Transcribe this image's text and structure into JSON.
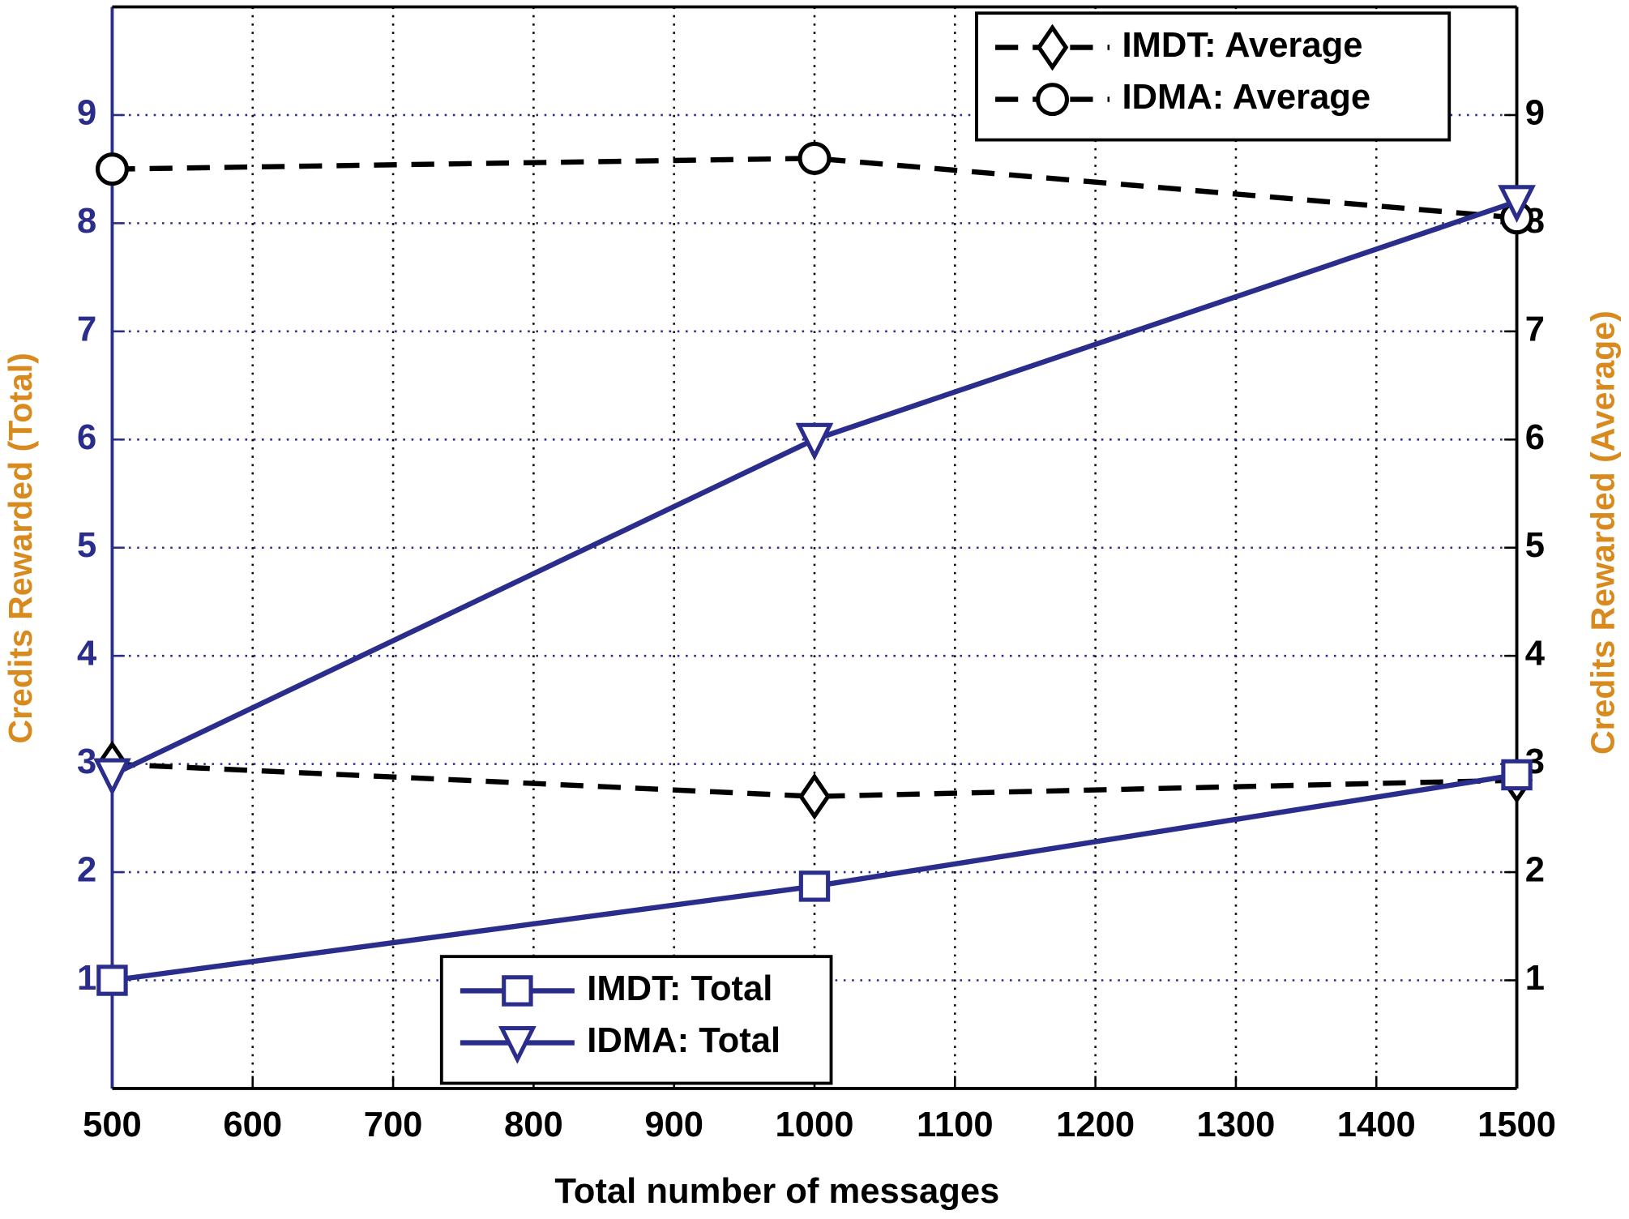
{
  "chart_data": {
    "type": "line",
    "x_label": "Total number of messages",
    "y_label": "Credits Rewarded (Total)",
    "y2_label": "Credits Rewarded (Average)",
    "x": [
      500,
      1000,
      1500
    ],
    "xlim": [
      500,
      1500
    ],
    "xticks": [
      500,
      600,
      700,
      800,
      900,
      1000,
      1100,
      1200,
      1300,
      1400,
      1500
    ],
    "ylim": [
      0,
      10
    ],
    "yticks": [
      1,
      2,
      3,
      4,
      5,
      6,
      7,
      8,
      9
    ],
    "y2lim": [
      0,
      10
    ],
    "y2ticks": [
      1,
      2,
      3,
      4,
      5,
      6,
      7,
      8,
      9
    ],
    "grid": true,
    "series": [
      {
        "name": "IMDT: Average",
        "color": "#000000",
        "dash": true,
        "marker": "diamond",
        "axis": "y2",
        "values": [
          3.0,
          2.7,
          2.85
        ]
      },
      {
        "name": "IDMA: Average",
        "color": "#000000",
        "dash": true,
        "marker": "circle",
        "axis": "y2",
        "values": [
          8.5,
          8.6,
          8.05
        ]
      },
      {
        "name": "IMDT:  Total",
        "color": "#2b2d8c",
        "dash": false,
        "marker": "square",
        "values": [
          1.0,
          1.87,
          2.9
        ]
      },
      {
        "name": "IDMA: Total",
        "color": "#2b2d8c",
        "dash": false,
        "marker": "triangle",
        "values": [
          2.9,
          6.0,
          8.2
        ]
      }
    ]
  }
}
